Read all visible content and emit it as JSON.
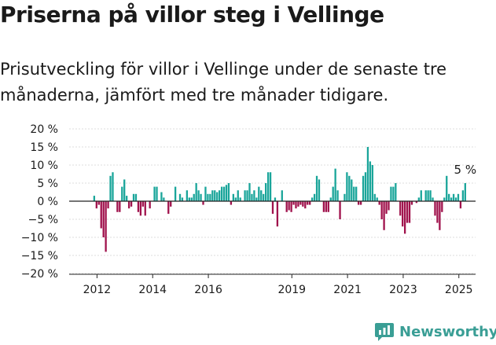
{
  "header": {
    "title": "Priserna på villor steg i Vellinge",
    "subtitle": "Prisutveckling för villor i Vellinge under de senaste tre månaderna, jämfört med tre månader tidigare."
  },
  "brand": {
    "name": "Newsworthy",
    "icon": "newsworthy-logo-icon",
    "color": "#3a9e95"
  },
  "chart_data": {
    "type": "bar",
    "title": "",
    "xlabel": "",
    "ylabel": "",
    "unit": "%",
    "ylim": [
      -20,
      20
    ],
    "yticks": [
      20,
      15,
      10,
      5,
      0,
      -5,
      -10,
      -15,
      -20
    ],
    "ytick_labels": [
      "20 %",
      "15 %",
      "10 %",
      "5 %",
      "0 %",
      "−5 %",
      "−10 %",
      "−15 %",
      "−20 %"
    ],
    "xticks": [
      {
        "label": "2012",
        "x": 2012.0
      },
      {
        "label": "2014",
        "x": 2014.0
      },
      {
        "label": "2016",
        "x": 2016.0
      },
      {
        "label": "2019",
        "x": 2019.0
      },
      {
        "label": "2021",
        "x": 2021.0
      },
      {
        "label": "2023",
        "x": 2023.0
      },
      {
        "label": "2025",
        "x": 2025.0
      }
    ],
    "xlim": [
      2011.0,
      2025.6
    ],
    "start": 2011.9,
    "step": 0.0833,
    "colors": {
      "positive": "#1aa59a",
      "negative": "#a0124c"
    },
    "grid": true,
    "annotation": {
      "text": "5 %",
      "value": 5
    },
    "values": [
      1.5,
      -2,
      -1,
      -7.5,
      -10,
      -14,
      -2,
      7,
      8,
      0,
      -3,
      -3,
      4,
      6,
      1.5,
      -2,
      -1.5,
      2,
      2,
      -3,
      -4,
      -1.5,
      -4,
      0,
      -2,
      0,
      4,
      4,
      0,
      2.5,
      1,
      0,
      -3.5,
      -1.5,
      0,
      4,
      0,
      2,
      1,
      0,
      3,
      1,
      1,
      2,
      5,
      3,
      2,
      -1,
      4,
      2,
      2,
      3,
      3,
      2.5,
      3,
      4,
      4,
      4.5,
      5,
      -1,
      2,
      1,
      3,
      1,
      0,
      3,
      3,
      5,
      2,
      3,
      1,
      4,
      3,
      2,
      5,
      8,
      8,
      -3.5,
      1,
      -7,
      0,
      3,
      0,
      -3,
      -2.5,
      -3,
      -1,
      -2,
      -1.5,
      -1,
      -1.5,
      -2,
      -1,
      -1,
      1,
      2,
      7,
      6,
      0,
      -3,
      -3,
      -3,
      1,
      4,
      9,
      3,
      -5,
      0,
      2,
      8,
      7,
      6,
      4,
      4,
      -1,
      -1,
      7,
      8,
      15,
      11,
      10,
      2,
      1,
      -1,
      -5,
      -8,
      -3.5,
      -2.5,
      4,
      4,
      5,
      0,
      -4,
      -7,
      -9,
      -6,
      -6,
      -1,
      0,
      -0.5,
      1,
      3,
      0,
      3,
      3,
      3,
      1,
      -4,
      -6,
      -8,
      -3,
      1,
      7,
      2,
      1,
      2,
      1,
      2,
      -2,
      3,
      5
    ]
  }
}
